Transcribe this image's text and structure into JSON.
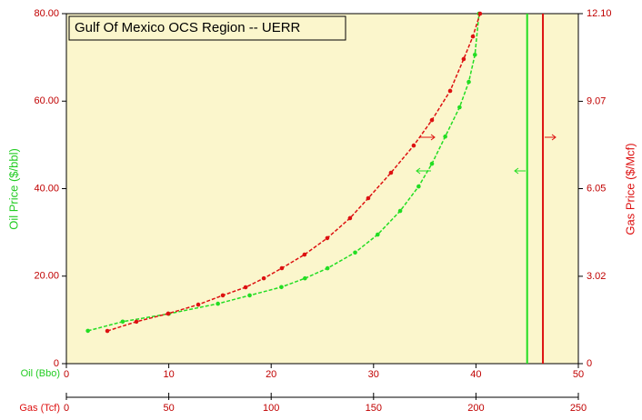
{
  "chart_data": {
    "type": "line",
    "title": "Gulf Of Mexico OCS Region  -- UERR",
    "xlabel": "Oil (Bbo)",
    "x2label": "Gas (Tcf)",
    "ylabel": "Oil Price ($/bbl)",
    "y2label": "Gas Price ($/Mcf)",
    "xlim": [
      0,
      50
    ],
    "xticks": [
      0,
      10,
      20,
      30,
      40,
      50
    ],
    "x2lim": [
      0,
      250
    ],
    "x2ticks": [
      0,
      50,
      100,
      150,
      200,
      250
    ],
    "ylim": [
      0,
      80
    ],
    "yticks": [
      0,
      {
        "value": 20,
        "label": "20.00"
      },
      {
        "value": 40,
        "label": "40.00"
      },
      {
        "value": 60,
        "label": "60.00"
      },
      {
        "value": 80,
        "label": "80.00"
      }
    ],
    "y2lim": [
      0,
      12.1
    ],
    "y2ticks": [
      0,
      3.02,
      6.05,
      9.07,
      {
        "value": 12.1,
        "label": "12.10"
      }
    ],
    "background": "#fbf6cc",
    "series": [
      {
        "color": "#22dd22",
        "xaxis": "x",
        "axis": "y",
        "limit": 45.0,
        "x": [
          2.1,
          5.5,
          10,
          14.8,
          17.9,
          21.0,
          23.3,
          25.5,
          28.2,
          30.4,
          32.6,
          34.4,
          35.7,
          37.0,
          38.4,
          39.3,
          39.9,
          40.3
        ],
        "values": [
          7.5,
          9.6,
          11.4,
          13.7,
          15.6,
          17.5,
          19.5,
          21.8,
          25.4,
          29.5,
          34.9,
          40.5,
          45.7,
          51.9,
          58.6,
          64.4,
          70.6,
          80
        ]
      },
      {
        "color": "#dd1111",
        "xaxis": "x2",
        "axis": "y2",
        "limit": 232.7,
        "x": [
          20,
          34.2,
          49.7,
          64.4,
          76.4,
          87.5,
          96.4,
          105.2,
          116.3,
          127.4,
          138.5,
          147.4,
          158.5,
          169.6,
          178.5,
          187.4,
          194.0,
          198.5,
          202
        ],
        "values": [
          1.13,
          1.45,
          1.73,
          2.04,
          2.36,
          2.64,
          2.95,
          3.3,
          3.77,
          4.34,
          5.03,
          5.72,
          6.6,
          7.54,
          8.42,
          9.43,
          10.53,
          11.31,
          12.1
        ]
      }
    ]
  }
}
